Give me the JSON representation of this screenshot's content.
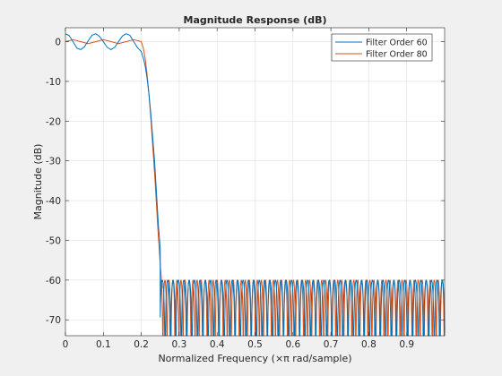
{
  "chart_data": {
    "type": "line",
    "title": "Magnitude Response (dB)",
    "xlabel": "Normalized Frequency (×π rad/sample)",
    "ylabel": "Magnitude (dB)",
    "xlim": [
      0,
      1
    ],
    "ylim": [
      -74,
      3.5
    ],
    "x_ticks": [
      "0",
      "0.1",
      "0.2",
      "0.3",
      "0.4",
      "0.5",
      "0.6",
      "0.7",
      "0.8",
      "0.9"
    ],
    "y_ticks": [
      "0",
      "-10",
      "-20",
      "-30",
      "-40",
      "-50",
      "-60",
      "-70"
    ],
    "grid": true,
    "legend_position": "top-right",
    "series": [
      {
        "name": "Filter Order 60",
        "color": "#0072BD",
        "passband_edge": 0.2,
        "stopband_edge": 0.25,
        "passband_ripple_db": 2,
        "stopband_level_db": -60,
        "x": [
          0,
          0.01,
          0.02,
          0.03,
          0.04,
          0.05,
          0.06,
          0.07,
          0.08,
          0.09,
          0.1,
          0.11,
          0.12,
          0.13,
          0.14,
          0.15,
          0.16,
          0.17,
          0.18,
          0.19,
          0.2,
          0.205,
          0.21,
          0.215,
          0.22,
          0.225,
          0.23,
          0.235,
          0.24,
          0.245,
          0.25
        ],
        "y": [
          2,
          1.5,
          0,
          -1.6,
          -2,
          -1.3,
          0.2,
          1.6,
          2,
          1.3,
          0,
          -1.4,
          -2,
          -1.4,
          0,
          1.4,
          2,
          1.6,
          0,
          -1.5,
          -2.5,
          -4,
          -6,
          -9,
          -13,
          -18,
          -24,
          -30,
          -38,
          -46,
          -52
        ]
      },
      {
        "name": "Filter Order 80",
        "color": "#D95319",
        "passband_edge": 0.2,
        "stopband_edge": 0.25,
        "passband_ripple_db": 0.5,
        "stopband_level_db": -60,
        "x": [
          0,
          0.02,
          0.04,
          0.06,
          0.08,
          0.1,
          0.12,
          0.14,
          0.16,
          0.18,
          0.2,
          0.205,
          0.21,
          0.215,
          0.22,
          0.225,
          0.23,
          0.235,
          0.24,
          0.245,
          0.25,
          0.255
        ],
        "y": [
          0,
          0.5,
          0,
          -0.5,
          0,
          0.5,
          0,
          -0.5,
          0,
          0.5,
          0,
          -1.5,
          -4,
          -8,
          -13,
          -19,
          -26,
          -33,
          -41,
          -49,
          -56,
          -62
        ]
      }
    ]
  }
}
